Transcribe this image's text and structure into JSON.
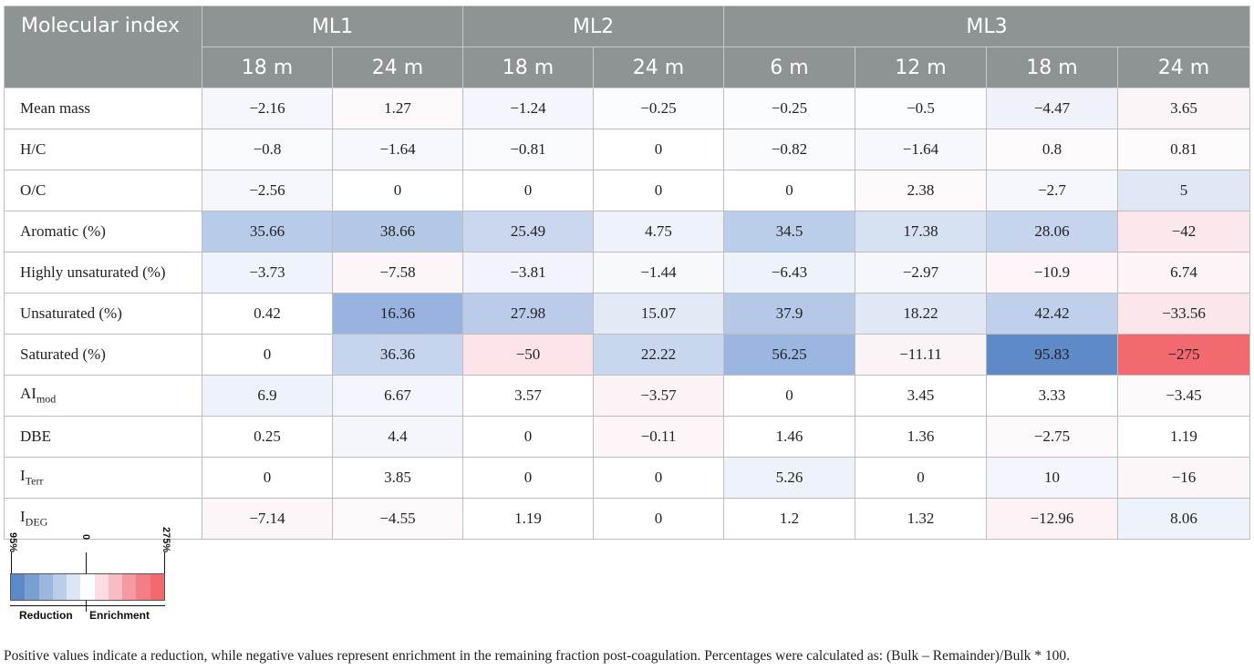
{
  "header": {
    "corner": "Molecular index",
    "groups": [
      {
        "name": "ML1",
        "cols": [
          "18 m",
          "24 m"
        ]
      },
      {
        "name": "ML2",
        "cols": [
          "18 m",
          "24 m"
        ]
      },
      {
        "name": "ML3",
        "cols": [
          "6 m",
          "12 m",
          "18 m",
          "24 m"
        ]
      }
    ]
  },
  "rows": [
    {
      "label": "Mean mass",
      "sub": "",
      "values": [
        "−2.16",
        "1.27",
        "−1.24",
        "−0.25",
        "−0.25",
        "−0.5",
        "−4.47",
        "3.65"
      ],
      "colors": [
        "#f6f7fd",
        "#fdf9fb",
        "#f5f6fd",
        "#fbfcfe",
        "#fbfcfe",
        "#fcfdfe",
        "#eff2fb",
        "#fcf5f8"
      ]
    },
    {
      "label": "H/C",
      "sub": "",
      "values": [
        "−0.8",
        "−1.64",
        "−0.81",
        "0",
        "−0.82",
        "−1.64",
        "0.8",
        "0.81"
      ],
      "colors": [
        "#fafbfe",
        "#f7f8fd",
        "#fafbfe",
        "#ffffff",
        "#fafbfe",
        "#f7f8fd",
        "#fefbfc",
        "#fefbfc"
      ]
    },
    {
      "label": "O/C",
      "sub": "",
      "values": [
        "−2.56",
        "0",
        "0",
        "0",
        "0",
        "2.38",
        "−2.7",
        "5"
      ],
      "colors": [
        "#f5f7fd",
        "#ffffff",
        "#ffffff",
        "#ffffff",
        "#ffffff",
        "#fdf8fa",
        "#f5f7fd",
        "#dfe7f5"
      ]
    },
    {
      "label": "Aromatic (%)",
      "sub": "",
      "values": [
        "35.66",
        "38.66",
        "25.49",
        "4.75",
        "34.5",
        "17.38",
        "28.06",
        "−42"
      ],
      "colors": [
        "#b8cbe8",
        "#b3c7e7",
        "#cad7ee",
        "#eef2fb",
        "#bacde9",
        "#d6e1f2",
        "#c6d4ed",
        "#fbe8ec"
      ]
    },
    {
      "label": "Highly unsaturated (%)",
      "sub": "",
      "values": [
        "−3.73",
        "−7.58",
        "−3.81",
        "−1.44",
        "−6.43",
        "−2.97",
        "−10.9",
        "6.74"
      ],
      "colors": [
        "#eff3fb",
        "#fdf6f8",
        "#f1f4fc",
        "#f8f9fd",
        "#eef2fb",
        "#f5f7fd",
        "#fdf5f7",
        "#fcf4f6"
      ]
    },
    {
      "label": "Unsaturated (%)",
      "sub": "",
      "values": [
        "0.42",
        "16.36",
        "27.98",
        "15.07",
        "37.9",
        "18.22",
        "42.42",
        "−33.56"
      ],
      "colors": [
        "#ffffff",
        "#98b3df",
        "#bacce9",
        "#e3eaf6",
        "#b5c8e7",
        "#e0e8f5",
        "#c0d0eb",
        "#fbe6ea"
      ]
    },
    {
      "label": "Saturated (%)",
      "sub": "",
      "values": [
        "0",
        "36.36",
        "−50",
        "22.22",
        "56.25",
        "−11.11",
        "95.83",
        "−275"
      ],
      "colors": [
        "#ffffff",
        "#c6d5ed",
        "#fbe3e7",
        "#c9d7ee",
        "#9bb6e0",
        "#fbf4f6",
        "#5f8ac8",
        "#f26a70"
      ]
    },
    {
      "label": "AI",
      "sub": "mod",
      "values": [
        "6.9",
        "6.67",
        "3.57",
        "−3.57",
        "0",
        "3.45",
        "3.33",
        "−3.45"
      ],
      "colors": [
        "#eef2fb",
        "#f3f5fc",
        "#ffffff",
        "#fcf3f6",
        "#ffffff",
        "#ffffff",
        "#ffffff",
        "#fdf8fa"
      ]
    },
    {
      "label": "DBE",
      "sub": "",
      "values": [
        "0.25",
        "4.4",
        "0",
        "−0.11",
        "1.46",
        "1.36",
        "−2.75",
        "1.19"
      ],
      "colors": [
        "#ffffff",
        "#f4f6fc",
        "#ffffff",
        "#fdf5f8",
        "#ffffff",
        "#ffffff",
        "#fdf8fa",
        "#ffffff"
      ]
    },
    {
      "label": "I",
      "sub": "Terr",
      "values": [
        "0",
        "3.85",
        "0",
        "0",
        "5.26",
        "0",
        "10",
        "−16"
      ],
      "colors": [
        "#ffffff",
        "#ffffff",
        "#ffffff",
        "#ffffff",
        "#eef2fb",
        "#ffffff",
        "#f3f5fc",
        "#fdf6f8"
      ]
    },
    {
      "label": "I",
      "sub": "DEG",
      "values": [
        "−7.14",
        "−4.55",
        "1.19",
        "0",
        "1.2",
        "1.32",
        "−12.96",
        "8.06"
      ],
      "colors": [
        "#fdf6f8",
        "#fdf8fa",
        "#ffffff",
        "#ffffff",
        "#ffffff",
        "#ffffff",
        "#fcf2f5",
        "#eef2fb"
      ]
    }
  ],
  "legend": {
    "min_label": "95%",
    "mid_label": "0",
    "max_label": "275%",
    "left_caption": "Reduction",
    "right_caption": "Enrichment",
    "swatches": [
      "#5b88c8",
      "#7a9fd2",
      "#9cb7de",
      "#bccde9",
      "#dde6f4",
      "#fdfdff",
      "#fbdce2",
      "#f8bcc5",
      "#f59aa3",
      "#f37e88",
      "#f26a70"
    ]
  },
  "footnote": "Positive values indicate a reduction, while negative values represent enrichment in the remaining fraction post-coagulation. Percentages were calculated as: (Bulk – Remainder)/Bulk * 100."
}
